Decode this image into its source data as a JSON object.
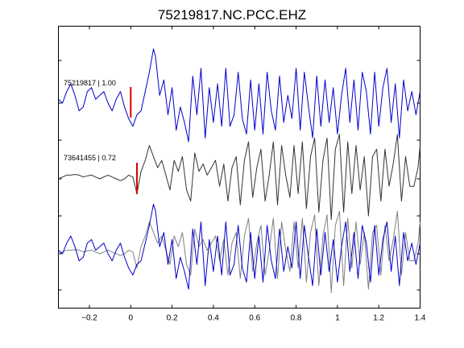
{
  "chart_data": {
    "type": "line",
    "title": "75219817.NC.PCC.EHZ",
    "xlabel": "",
    "ylabel": "",
    "xlim": [
      -0.35,
      1.4
    ],
    "xticks": [
      -0.2,
      0,
      0.2,
      0.4,
      0.6,
      0.8,
      1,
      1.2,
      1.4
    ],
    "xtick_labels": [
      "−0.2",
      "0",
      "0.2",
      "0.4",
      "0.6",
      "0.8",
      "1",
      "1.2",
      "1.4"
    ],
    "grid": false,
    "legend": "none",
    "traces": [
      {
        "label": "75219817 | 1.00",
        "color": "#0000cc",
        "pick_time": 0.0,
        "pick_color": "#dd0000",
        "x": [
          -0.35,
          -0.33,
          -0.31,
          -0.29,
          -0.27,
          -0.25,
          -0.23,
          -0.21,
          -0.19,
          -0.17,
          -0.15,
          -0.13,
          -0.11,
          -0.09,
          -0.07,
          -0.05,
          -0.03,
          -0.01,
          0.01,
          0.03,
          0.05,
          0.07,
          0.09,
          0.11,
          0.12,
          0.14,
          0.16,
          0.18,
          0.2,
          0.22,
          0.24,
          0.26,
          0.28,
          0.3,
          0.32,
          0.34,
          0.36,
          0.38,
          0.4,
          0.42,
          0.44,
          0.46,
          0.48,
          0.5,
          0.52,
          0.54,
          0.56,
          0.58,
          0.6,
          0.62,
          0.64,
          0.66,
          0.68,
          0.7,
          0.72,
          0.74,
          0.76,
          0.78,
          0.8,
          0.82,
          0.84,
          0.86,
          0.88,
          0.9,
          0.92,
          0.94,
          0.96,
          0.98,
          1.0,
          1.02,
          1.04,
          1.06,
          1.08,
          1.1,
          1.12,
          1.14,
          1.16,
          1.18,
          1.2,
          1.22,
          1.24,
          1.26,
          1.28,
          1.3,
          1.32,
          1.34,
          1.36,
          1.38,
          1.4
        ],
        "y": [
          0.1,
          0.0,
          0.3,
          0.5,
          0.2,
          -0.2,
          -0.1,
          0.3,
          0.4,
          0.1,
          0.2,
          0.3,
          0.0,
          -0.2,
          0.1,
          0.3,
          -0.1,
          -0.4,
          -0.6,
          -0.3,
          -0.2,
          0.3,
          0.8,
          1.4,
          1.2,
          0.2,
          0.6,
          -0.3,
          0.4,
          -0.7,
          -0.1,
          -0.5,
          -1.0,
          0.7,
          -0.3,
          0.9,
          -0.9,
          0.4,
          -0.5,
          0.5,
          -0.6,
          0.9,
          -0.6,
          -0.3,
          0.8,
          -0.4,
          -0.8,
          0.6,
          -0.7,
          0.5,
          -0.8,
          0.8,
          -0.2,
          -0.7,
          0.7,
          -0.5,
          0.2,
          -0.4,
          0.9,
          -0.7,
          0.8,
          -0.1,
          -0.9,
          0.7,
          -0.6,
          0.6,
          -0.5,
          0.4,
          -0.8,
          0.2,
          0.9,
          -0.5,
          0.6,
          -0.7,
          0.8,
          0.3,
          -0.8,
          0.8,
          -0.6,
          0.4,
          0.9,
          -0.5,
          0.5,
          -0.9,
          0.6,
          -0.2,
          0.3,
          -0.3,
          0.3
        ]
      },
      {
        "label": "73641455 | 0.72",
        "color": "#333333",
        "pick_time": 0.03,
        "pick_color": "#dd0000",
        "x": [
          -0.35,
          -0.33,
          -0.31,
          -0.29,
          -0.27,
          -0.25,
          -0.23,
          -0.21,
          -0.19,
          -0.17,
          -0.15,
          -0.13,
          -0.11,
          -0.09,
          -0.07,
          -0.05,
          -0.03,
          -0.01,
          0.01,
          0.03,
          0.05,
          0.07,
          0.09,
          0.11,
          0.13,
          0.15,
          0.17,
          0.19,
          0.21,
          0.23,
          0.25,
          0.27,
          0.29,
          0.31,
          0.33,
          0.35,
          0.37,
          0.39,
          0.41,
          0.43,
          0.45,
          0.47,
          0.49,
          0.51,
          0.53,
          0.55,
          0.57,
          0.59,
          0.61,
          0.63,
          0.65,
          0.67,
          0.69,
          0.71,
          0.73,
          0.75,
          0.77,
          0.79,
          0.81,
          0.83,
          0.85,
          0.87,
          0.89,
          0.91,
          0.93,
          0.95,
          0.97,
          0.99,
          1.01,
          1.03,
          1.05,
          1.07,
          1.09,
          1.11,
          1.13,
          1.15,
          1.17,
          1.19,
          1.21,
          1.23,
          1.25,
          1.27,
          1.29,
          1.31,
          1.33,
          1.35,
          1.37,
          1.39,
          1.4
        ],
        "y": [
          0.0,
          0.05,
          0.1,
          0.1,
          0.12,
          0.1,
          0.05,
          0.08,
          0.1,
          0.05,
          0.0,
          0.05,
          0.1,
          0.05,
          0.0,
          -0.05,
          0.0,
          0.1,
          0.05,
          -0.4,
          0.2,
          0.5,
          0.9,
          0.6,
          0.3,
          0.5,
          0.1,
          -0.3,
          0.5,
          0.2,
          0.6,
          -0.3,
          -0.6,
          0.7,
          0.2,
          0.4,
          0.1,
          0.3,
          0.5,
          -0.2,
          0.4,
          -0.6,
          0.3,
          0.6,
          -0.7,
          0.5,
          1.0,
          -0.5,
          0.3,
          0.8,
          -0.6,
          0.1,
          1.0,
          -0.7,
          0.9,
          0.1,
          -0.5,
          0.9,
          -0.4,
          1.0,
          -0.8,
          0.6,
          1.1,
          -0.9,
          0.5,
          1.1,
          -1.1,
          0.8,
          1.2,
          -0.9,
          1.0,
          -0.4,
          0.9,
          -0.3,
          0.6,
          -1.0,
          0.6,
          0.8,
          -0.6,
          0.8,
          -0.2,
          0.4,
          1.2,
          -0.6,
          0.6,
          -0.2,
          -0.2,
          0.3,
          0.9
        ]
      }
    ],
    "overlay": {
      "series": [
        {
          "color": "#808080",
          "source": "73641455 | 0.72"
        },
        {
          "color": "#0000cc",
          "source": "75219817 | 1.00"
        }
      ]
    }
  }
}
